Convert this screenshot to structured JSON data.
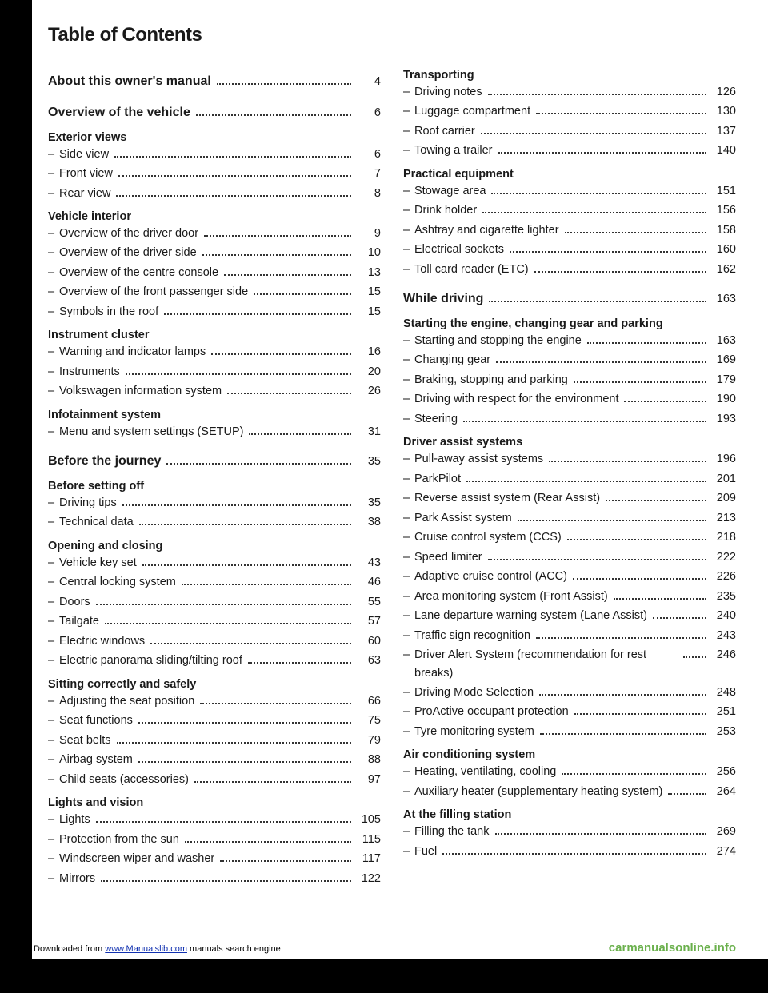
{
  "heading": "Table of Contents",
  "footer": {
    "download_prefix": "Downloaded from ",
    "download_link": "www.Manualslib.com",
    "download_suffix": " manuals search engine",
    "watermark": "carmanualsonline.info"
  },
  "left": [
    {
      "type": "section",
      "label": "About this owner's manual",
      "page": 4
    },
    {
      "type": "section",
      "label": "Overview of the vehicle",
      "page": 6
    },
    {
      "type": "subtitle",
      "label": "Exterior views"
    },
    {
      "type": "entry",
      "label": "Side view",
      "page": 6
    },
    {
      "type": "entry",
      "label": "Front view",
      "page": 7
    },
    {
      "type": "entry",
      "label": "Rear view",
      "page": 8
    },
    {
      "type": "subtitle",
      "label": "Vehicle interior"
    },
    {
      "type": "entry",
      "label": "Overview of the driver door",
      "page": 9
    },
    {
      "type": "entry",
      "label": "Overview of the driver side",
      "page": 10
    },
    {
      "type": "entry",
      "label": "Overview of the centre console",
      "page": 13
    },
    {
      "type": "entry",
      "label": "Overview of the front passenger side",
      "page": 15
    },
    {
      "type": "entry",
      "label": "Symbols in the roof",
      "page": 15
    },
    {
      "type": "subtitle",
      "label": "Instrument cluster"
    },
    {
      "type": "entry",
      "label": "Warning and indicator lamps",
      "page": 16
    },
    {
      "type": "entry",
      "label": "Instruments",
      "page": 20
    },
    {
      "type": "entry",
      "label": "Volkswagen information system",
      "page": 26
    },
    {
      "type": "subtitle",
      "label": "Infotainment system"
    },
    {
      "type": "entry",
      "label": "Menu and system settings (SETUP)",
      "page": 31
    },
    {
      "type": "section",
      "label": "Before the journey",
      "page": 35
    },
    {
      "type": "subtitle",
      "label": "Before setting off"
    },
    {
      "type": "entry",
      "label": "Driving tips",
      "page": 35
    },
    {
      "type": "entry",
      "label": "Technical data",
      "page": 38
    },
    {
      "type": "subtitle",
      "label": "Opening and closing"
    },
    {
      "type": "entry",
      "label": "Vehicle key set",
      "page": 43
    },
    {
      "type": "entry",
      "label": "Central locking system",
      "page": 46
    },
    {
      "type": "entry",
      "label": "Doors",
      "page": 55
    },
    {
      "type": "entry",
      "label": "Tailgate",
      "page": 57
    },
    {
      "type": "entry",
      "label": "Electric windows",
      "page": 60
    },
    {
      "type": "entry",
      "label": "Electric panorama sliding/tilting roof",
      "page": 63
    },
    {
      "type": "subtitle",
      "label": "Sitting correctly and safely"
    },
    {
      "type": "entry",
      "label": "Adjusting the seat position",
      "page": 66
    },
    {
      "type": "entry",
      "label": "Seat functions",
      "page": 75
    },
    {
      "type": "entry",
      "label": "Seat belts",
      "page": 79
    },
    {
      "type": "entry",
      "label": "Airbag system",
      "page": 88
    },
    {
      "type": "entry",
      "label": "Child seats (accessories)",
      "page": 97
    },
    {
      "type": "subtitle",
      "label": "Lights and vision"
    },
    {
      "type": "entry",
      "label": "Lights",
      "page": 105
    },
    {
      "type": "entry",
      "label": "Protection from the sun",
      "page": 115
    },
    {
      "type": "entry",
      "label": "Windscreen wiper and washer",
      "page": 117
    },
    {
      "type": "entry",
      "label": "Mirrors",
      "page": 122
    }
  ],
  "right": [
    {
      "type": "subtitle",
      "label": "Transporting"
    },
    {
      "type": "entry",
      "label": "Driving notes",
      "page": 126
    },
    {
      "type": "entry",
      "label": "Luggage compartment",
      "page": 130
    },
    {
      "type": "entry",
      "label": "Roof carrier",
      "page": 137
    },
    {
      "type": "entry",
      "label": "Towing a trailer",
      "page": 140
    },
    {
      "type": "subtitle",
      "label": "Practical equipment"
    },
    {
      "type": "entry",
      "label": "Stowage area",
      "page": 151
    },
    {
      "type": "entry",
      "label": "Drink holder",
      "page": 156
    },
    {
      "type": "entry",
      "label": "Ashtray and cigarette lighter",
      "page": 158
    },
    {
      "type": "entry",
      "label": "Electrical sockets",
      "page": 160
    },
    {
      "type": "entry",
      "label": "Toll card reader (ETC)",
      "page": 162
    },
    {
      "type": "section",
      "label": "While driving",
      "page": 163
    },
    {
      "type": "subtitle",
      "label": "Starting the engine, changing gear and parking"
    },
    {
      "type": "entry",
      "label": "Starting and stopping the engine",
      "page": 163
    },
    {
      "type": "entry",
      "label": "Changing gear",
      "page": 169
    },
    {
      "type": "entry",
      "label": "Braking, stopping and parking",
      "page": 179
    },
    {
      "type": "entry",
      "label": "Driving with respect for the environment",
      "page": 190
    },
    {
      "type": "entry",
      "label": "Steering",
      "page": 193
    },
    {
      "type": "subtitle",
      "label": "Driver assist systems"
    },
    {
      "type": "entry",
      "label": "Pull-away assist systems",
      "page": 196
    },
    {
      "type": "entry",
      "label": "ParkPilot",
      "page": 201
    },
    {
      "type": "entry",
      "label": "Reverse assist system (Rear Assist)",
      "page": 209
    },
    {
      "type": "entry",
      "label": "Park Assist system",
      "page": 213
    },
    {
      "type": "entry",
      "label": "Cruise control system (CCS)",
      "page": 218
    },
    {
      "type": "entry",
      "label": "Speed limiter",
      "page": 222
    },
    {
      "type": "entry",
      "label": "Adaptive cruise control (ACC)",
      "page": 226
    },
    {
      "type": "entry",
      "label": "Area monitoring system (Front Assist)",
      "page": 235
    },
    {
      "type": "entry",
      "label": "Lane departure warning system (Lane Assist)",
      "page": 240
    },
    {
      "type": "entry",
      "label": "Traffic sign recognition",
      "page": 243
    },
    {
      "type": "entry",
      "label": "Driver Alert System (recommendation for rest breaks)",
      "page": 246
    },
    {
      "type": "entry",
      "label": "Driving Mode Selection",
      "page": 248
    },
    {
      "type": "entry",
      "label": "ProActive occupant protection",
      "page": 251
    },
    {
      "type": "entry",
      "label": "Tyre monitoring system",
      "page": 253
    },
    {
      "type": "subtitle",
      "label": "Air conditioning system"
    },
    {
      "type": "entry",
      "label": "Heating, ventilating, cooling",
      "page": 256
    },
    {
      "type": "entry",
      "label": "Auxiliary heater (supplementary heating system)",
      "page": 264
    },
    {
      "type": "subtitle",
      "label": "At the filling station"
    },
    {
      "type": "entry",
      "label": "Filling the tank",
      "page": 269
    },
    {
      "type": "entry",
      "label": "Fuel",
      "page": 274
    }
  ]
}
